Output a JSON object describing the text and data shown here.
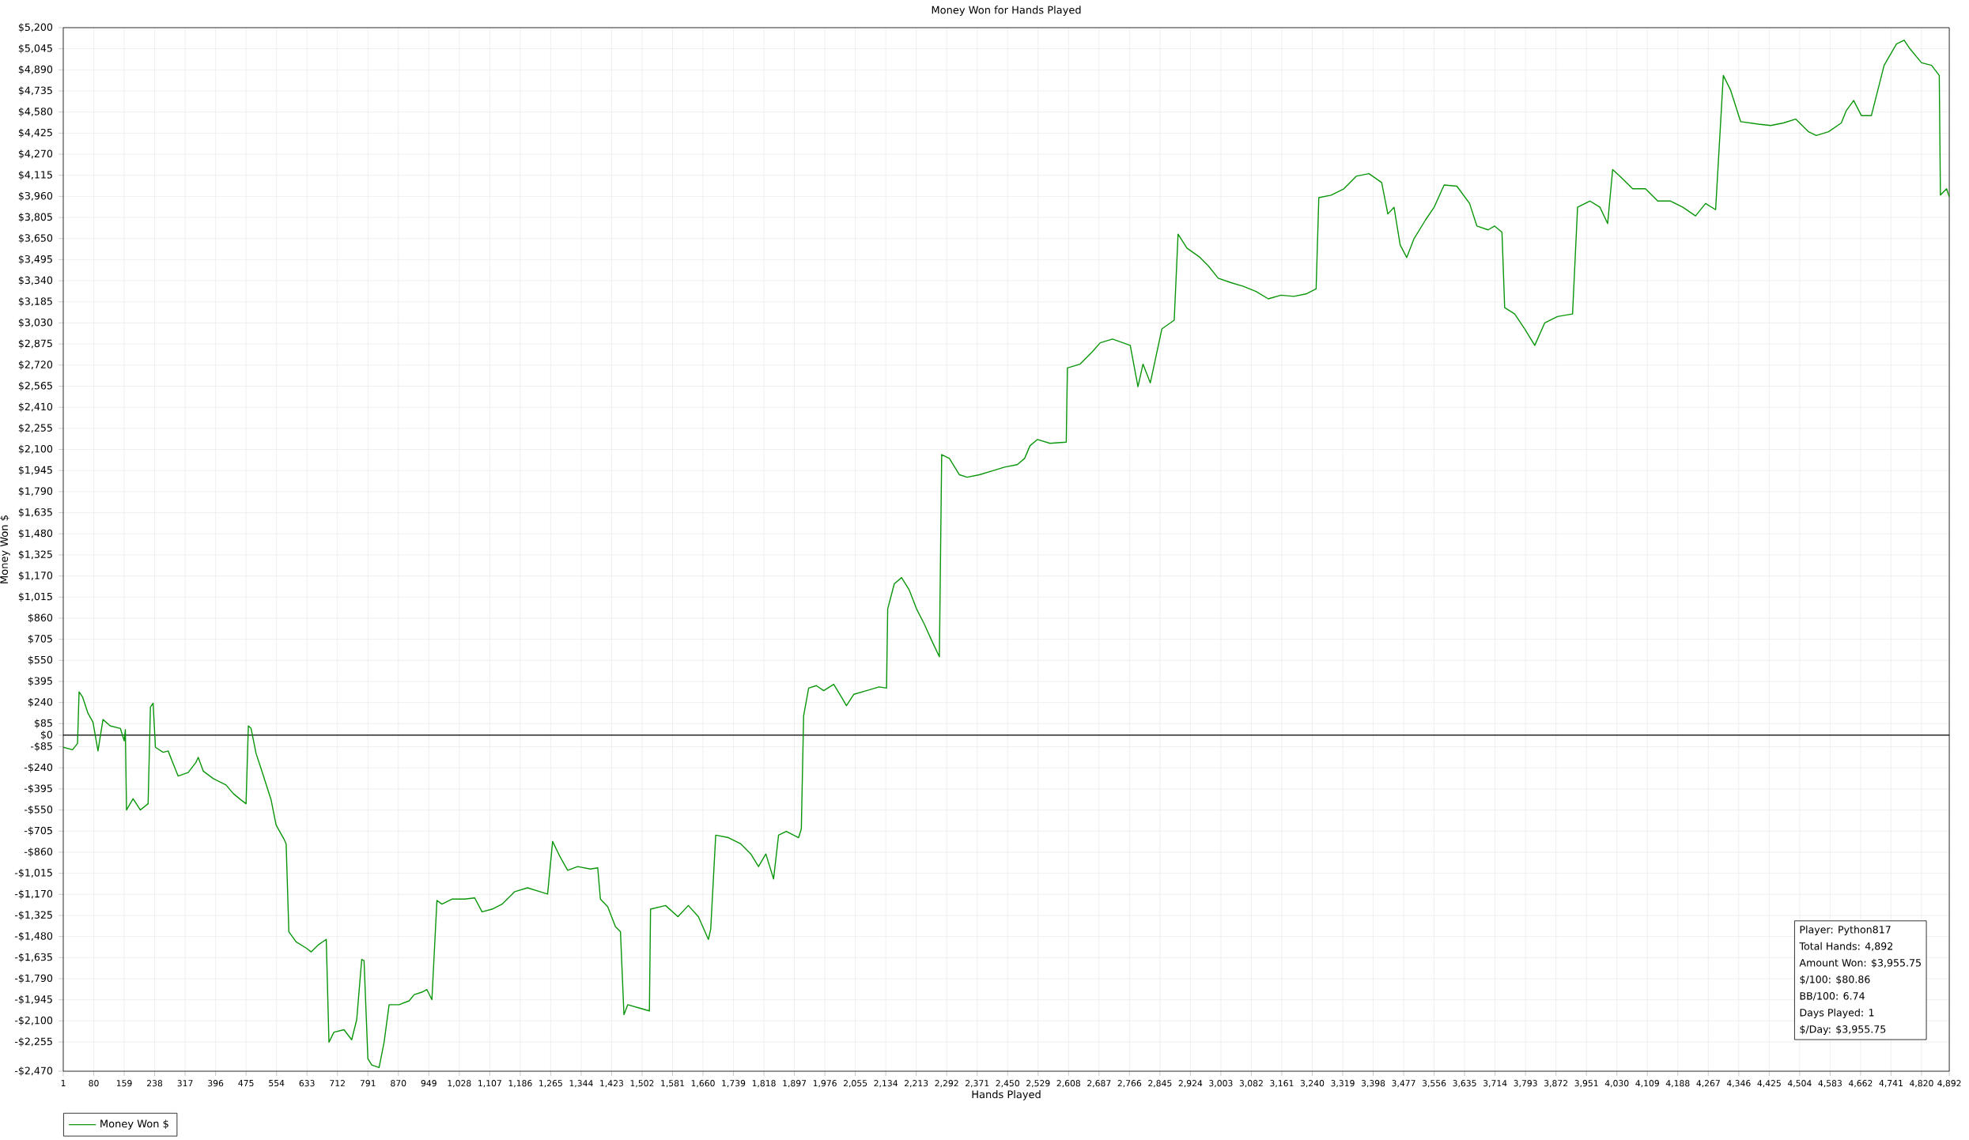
{
  "chart_data": {
    "type": "line",
    "title": "Money Won for Hands Played",
    "xlabel": "Hands Played",
    "ylabel": "Money Won $",
    "xlim": [
      1,
      4892
    ],
    "ylim": [
      -2470,
      5200
    ],
    "xticks": [
      1,
      80,
      159,
      238,
      317,
      396,
      475,
      554,
      633,
      712,
      791,
      870,
      949,
      {
        "value": 1028,
        "label": "1,028"
      },
      {
        "value": 1107,
        "label": "1,107"
      },
      {
        "value": 1186,
        "label": "1,186"
      },
      {
        "value": 1265,
        "label": "1,265"
      },
      {
        "value": 1344,
        "label": "1,344"
      },
      {
        "value": 1423,
        "label": "1,423"
      },
      {
        "value": 1502,
        "label": "1,502"
      },
      {
        "value": 1581,
        "label": "1,581"
      },
      {
        "value": 1660,
        "label": "1,660"
      },
      {
        "value": 1739,
        "label": "1,739"
      },
      {
        "value": 1818,
        "label": "1,818"
      },
      {
        "value": 1897,
        "label": "1,897"
      },
      {
        "value": 1976,
        "label": "1,976"
      },
      {
        "value": 2055,
        "label": "2,055"
      },
      {
        "value": 2134,
        "label": "2,134"
      },
      {
        "value": 2213,
        "label": "2,213"
      },
      {
        "value": 2292,
        "label": "2,292"
      },
      {
        "value": 2371,
        "label": "2,371"
      },
      {
        "value": 2450,
        "label": "2,450"
      },
      {
        "value": 2529,
        "label": "2,529"
      },
      {
        "value": 2608,
        "label": "2,608"
      },
      {
        "value": 2687,
        "label": "2,687"
      },
      {
        "value": 2766,
        "label": "2,766"
      },
      {
        "value": 2845,
        "label": "2,845"
      },
      {
        "value": 2924,
        "label": "2,924"
      },
      {
        "value": 3003,
        "label": "3,003"
      },
      {
        "value": 3082,
        "label": "3,082"
      },
      {
        "value": 3161,
        "label": "3,161"
      },
      {
        "value": 3240,
        "label": "3,240"
      },
      {
        "value": 3319,
        "label": "3,319"
      },
      {
        "value": 3398,
        "label": "3,398"
      },
      {
        "value": 3477,
        "label": "3,477"
      },
      {
        "value": 3556,
        "label": "3,556"
      },
      {
        "value": 3635,
        "label": "3,635"
      },
      {
        "value": 3714,
        "label": "3,714"
      },
      {
        "value": 3793,
        "label": "3,793"
      },
      {
        "value": 3872,
        "label": "3,872"
      },
      {
        "value": 3951,
        "label": "3,951"
      },
      {
        "value": 4030,
        "label": "4,030"
      },
      {
        "value": 4109,
        "label": "4,109"
      },
      {
        "value": 4188,
        "label": "4,188"
      },
      {
        "value": 4267,
        "label": "4,267"
      },
      {
        "value": 4346,
        "label": "4,346"
      },
      {
        "value": 4425,
        "label": "4,425"
      },
      {
        "value": 4504,
        "label": "4,504"
      },
      {
        "value": 4583,
        "label": "4,583"
      },
      {
        "value": 4662,
        "label": "4,662"
      },
      {
        "value": 4741,
        "label": "4,741"
      },
      {
        "value": 4820,
        "label": "4,820"
      },
      {
        "value": 4892,
        "label": "4,892"
      }
    ],
    "yticks": [
      {
        "value": 5200,
        "label": "$5,200"
      },
      {
        "value": 5045,
        "label": "$5,045"
      },
      {
        "value": 4890,
        "label": "$4,890"
      },
      {
        "value": 4735,
        "label": "$4,735"
      },
      {
        "value": 4580,
        "label": "$4,580"
      },
      {
        "value": 4425,
        "label": "$4,425"
      },
      {
        "value": 4270,
        "label": "$4,270"
      },
      {
        "value": 4115,
        "label": "$4,115"
      },
      {
        "value": 3960,
        "label": "$3,960"
      },
      {
        "value": 3805,
        "label": "$3,805"
      },
      {
        "value": 3650,
        "label": "$3,650"
      },
      {
        "value": 3495,
        "label": "$3,495"
      },
      {
        "value": 3340,
        "label": "$3,340"
      },
      {
        "value": 3185,
        "label": "$3,185"
      },
      {
        "value": 3030,
        "label": "$3,030"
      },
      {
        "value": 2875,
        "label": "$2,875"
      },
      {
        "value": 2720,
        "label": "$2,720"
      },
      {
        "value": 2565,
        "label": "$2,565"
      },
      {
        "value": 2410,
        "label": "$2,410"
      },
      {
        "value": 2255,
        "label": "$2,255"
      },
      {
        "value": 2100,
        "label": "$2,100"
      },
      {
        "value": 1945,
        "label": "$1,945"
      },
      {
        "value": 1790,
        "label": "$1,790"
      },
      {
        "value": 1635,
        "label": "$1,635"
      },
      {
        "value": 1480,
        "label": "$1,480"
      },
      {
        "value": 1325,
        "label": "$1,325"
      },
      {
        "value": 1170,
        "label": "$1,170"
      },
      {
        "value": 1015,
        "label": "$1,015"
      },
      {
        "value": 860,
        "label": "$860"
      },
      {
        "value": 705,
        "label": "$705"
      },
      {
        "value": 550,
        "label": "$550"
      },
      {
        "value": 395,
        "label": "$395"
      },
      {
        "value": 240,
        "label": "$240"
      },
      {
        "value": 85,
        "label": "$85"
      },
      {
        "value": 0,
        "label": "$0"
      },
      {
        "value": -85,
        "label": "-$85"
      },
      {
        "value": -240,
        "label": "-$240"
      },
      {
        "value": -395,
        "label": "-$395"
      },
      {
        "value": -550,
        "label": "-$550"
      },
      {
        "value": -705,
        "label": "-$705"
      },
      {
        "value": -860,
        "label": "-$860"
      },
      {
        "value": -1015,
        "label": "-$1,015"
      },
      {
        "value": -1170,
        "label": "-$1,170"
      },
      {
        "value": -1325,
        "label": "-$1,325"
      },
      {
        "value": -1480,
        "label": "-$1,480"
      },
      {
        "value": -1635,
        "label": "-$1,635"
      },
      {
        "value": -1790,
        "label": "-$1,790"
      },
      {
        "value": -1945,
        "label": "-$1,945"
      },
      {
        "value": -2100,
        "label": "-$2,100"
      },
      {
        "value": -2255,
        "label": "-$2,255"
      },
      {
        "value": -2470,
        "label": "-$2,470"
      }
    ],
    "grid": true,
    "legend": "bottom left",
    "marker": "none",
    "line_style": "solid",
    "ref_lines": [
      {
        "axis": "y",
        "value": 0,
        "color": "#000000"
      }
    ],
    "annotations": [
      "Player: Python817",
      "Total Hands: 4,892",
      "Amount Won: $3,955.75",
      "$/100: $80.86",
      "BB/100: 6.74",
      "Days Played: 1",
      "$/Day: $3,955.75"
    ],
    "series": [
      {
        "name": "Money Won $",
        "color": "#0a960a",
        "x": [
          1,
          25,
          38,
          42,
          51,
          65,
          78,
          91,
          104,
          123,
          149,
          159,
          162,
          165,
          182,
          201,
          221,
          227,
          234,
          240,
          260,
          273,
          286,
          299,
          325,
          345,
          351,
          364,
          390,
          423,
          442,
          462,
          475,
          481,
          488,
          501,
          514,
          540,
          553,
          573,
          579,
          586,
          605,
          631,
          644,
          664,
          683,
          690,
          703,
          729,
          749,
          762,
          775,
          781,
          791,
          801,
          820,
          833,
          846,
          872,
          898,
          911,
          931,
          944,
          957,
          970,
          983,
          1009,
          1042,
          1068,
          1087,
          1113,
          1139,
          1172,
          1205,
          1237,
          1257,
          1270,
          1289,
          1309,
          1335,
          1368,
          1387,
          1394,
          1413,
          1433,
          1446,
          1455,
          1465,
          1498,
          1521,
          1524,
          1563,
          1595,
          1622,
          1648,
          1674,
          1680,
          1693,
          1726,
          1758,
          1784,
          1804,
          1823,
          1843,
          1856,
          1876,
          1908,
          1915,
          1921,
          1934,
          1954,
          1973,
          1999,
          2019,
          2032,
          2051,
          2084,
          2117,
          2136,
          2139,
          2156,
          2175,
          2195,
          2214,
          2234,
          2253,
          2273,
          2279,
          2299,
          2325,
          2345,
          2377,
          2410,
          2442,
          2475,
          2494,
          2508,
          2527,
          2560,
          2602,
          2605,
          2638,
          2670,
          2690,
          2722,
          2768,
          2788,
          2801,
          2820,
          2850,
          2882,
          2892,
          2915,
          2947,
          2970,
          2996,
          3029,
          3061,
          3094,
          3126,
          3159,
          3192,
          3224,
          3250,
          3257,
          3289,
          3322,
          3354,
          3387,
          3420,
          3436,
          3452,
          3468,
          3485,
          3504,
          3534,
          3556,
          3582,
          3615,
          3648,
          3667,
          3696,
          3713,
          3732,
          3739,
          3765,
          3791,
          3817,
          3843,
          3876,
          3915,
          3928,
          3960,
          3986,
          4006,
          4019,
          4038,
          4071,
          4104,
          4136,
          4169,
          4201,
          4234,
          4260,
          4286,
          4306,
          4325,
          4351,
          4397,
          4429,
          4462,
          4494,
          4527,
          4547,
          4579,
          4612,
          4625,
          4644,
          4664,
          4690,
          4723,
          4755,
          4775,
          4788,
          4820,
          4846,
          4866,
          4869,
          4885,
          4892
        ],
        "values": [
          -89,
          -107,
          -61,
          318,
          281,
          161,
          96,
          -116,
          115,
          68,
          50,
          -42,
          41,
          -550,
          -467,
          -550,
          -504,
          207,
          235,
          -89,
          -126,
          -116,
          -209,
          -301,
          -274,
          -200,
          -163,
          -264,
          -319,
          -366,
          -430,
          -476,
          -504,
          68,
          50,
          -135,
          -246,
          -476,
          -661,
          -762,
          -799,
          -1445,
          -1519,
          -1565,
          -1593,
          -1538,
          -1501,
          -2257,
          -2183,
          -2165,
          -2239,
          -2091,
          -1648,
          -1657,
          -2378,
          -2424,
          -2443,
          -2257,
          -1981,
          -1981,
          -1953,
          -1907,
          -1889,
          -1870,
          -1944,
          -1215,
          -1242,
          -1205,
          -1205,
          -1196,
          -1298,
          -1279,
          -1242,
          -1150,
          -1122,
          -1150,
          -1168,
          -781,
          -892,
          -993,
          -966,
          -984,
          -975,
          -1205,
          -1261,
          -1408,
          -1445,
          -2054,
          -1981,
          -2008,
          -2027,
          -1279,
          -1252,
          -1334,
          -1252,
          -1334,
          -1501,
          -1427,
          -735,
          -753,
          -799,
          -873,
          -966,
          -873,
          -1057,
          -735,
          -707,
          -753,
          -689,
          143,
          346,
          364,
          327,
          374,
          281,
          217,
          300,
          327,
          355,
          346,
          927,
          1112,
          1158,
          1066,
          927,
          816,
          696,
          576,
          2062,
          2034,
          1914,
          1896,
          1914,
          1942,
          1970,
          1988,
          2034,
          2127,
          2173,
          2145,
          2154,
          2699,
          2727,
          2819,
          2884,
          2911,
          2865,
          2561,
          2727,
          2589,
          2986,
          3050,
          3682,
          3580,
          3516,
          3451,
          3359,
          3326,
          3299,
          3262,
          3207,
          3234,
          3225,
          3243,
          3280,
          3951,
          3969,
          4016,
          4108,
          4127,
          4062,
          3831,
          3880,
          3603,
          3511,
          3650,
          3788,
          3880,
          4044,
          4035,
          3908,
          3742,
          3714,
          3742,
          3696,
          3142,
          3096,
          2986,
          2865,
          3031,
          3077,
          3096,
          3880,
          3926,
          3880,
          3760,
          4157,
          4108,
          4016,
          4016,
          3926,
          3926,
          3880,
          3816,
          3908,
          3862,
          4849,
          4740,
          4509,
          4491,
          4481,
          4500,
          4528,
          4435,
          4408,
          4435,
          4500,
          4591,
          4665,
          4554,
          4554,
          4923,
          5080,
          5108,
          5052,
          4942,
          4923,
          4849,
          3969,
          4016,
          3956
        ]
      }
    ]
  }
}
